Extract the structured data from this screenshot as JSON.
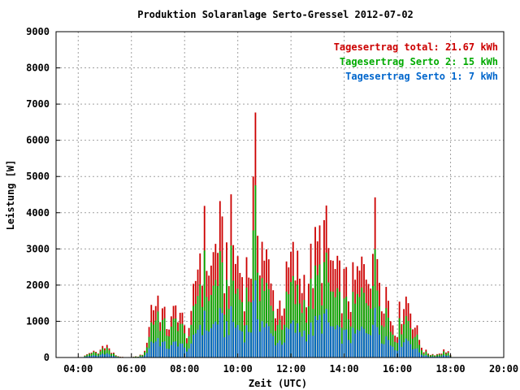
{
  "chart_data": {
    "type": "bar",
    "title": "Produktion Solaranlage Serto-Gressel 2012-07-02",
    "xlabel": "Zeit (UTC)",
    "ylabel": "Leistung [W]",
    "xlim": [
      3.1667,
      20.0
    ],
    "ylim": [
      0,
      9000
    ],
    "yticks": [
      0,
      1000,
      2000,
      3000,
      4000,
      5000,
      6000,
      7000,
      8000,
      9000
    ],
    "xticks": [
      {
        "value": 4,
        "label": "04:00"
      },
      {
        "value": 6,
        "label": "06:00"
      },
      {
        "value": 8,
        "label": "08:00"
      },
      {
        "value": 10,
        "label": "10:00"
      },
      {
        "value": 12,
        "label": "12:00"
      },
      {
        "value": 14,
        "label": "14:00"
      },
      {
        "value": 16,
        "label": "16:00"
      },
      {
        "value": 18,
        "label": "18:00"
      },
      {
        "value": 20,
        "label": "20:00"
      }
    ],
    "grid": true,
    "legend_position": "top-right",
    "legend": [
      {
        "label": "Tagesertrag total: 21.67 kWh",
        "color": "#cc0000"
      },
      {
        "label": "Tagesertrag Serto 2: 15 kWh",
        "color": "#00aa00"
      },
      {
        "label": "Tagesertrag Serto 1: 7 kWh",
        "color": "#0066cc"
      }
    ],
    "bar_interval_hours": 0.0833,
    "time_range": [
      "04:15",
      "18:00"
    ],
    "series": [
      {
        "name": "total",
        "color": "#cc0000",
        "keyframes": [
          [
            4.25,
            50
          ],
          [
            4.5,
            180
          ],
          [
            4.75,
            120
          ],
          [
            5.0,
            450
          ],
          [
            5.25,
            150
          ],
          [
            5.5,
            40
          ],
          [
            5.75,
            0
          ],
          [
            6.25,
            30
          ],
          [
            6.5,
            150
          ],
          [
            6.75,
            1500
          ],
          [
            7.0,
            1750
          ],
          [
            7.25,
            1100
          ],
          [
            7.5,
            1000
          ],
          [
            7.75,
            1600
          ],
          [
            8.0,
            800
          ],
          [
            8.25,
            1000
          ],
          [
            8.5,
            3000
          ],
          [
            8.75,
            3400
          ],
          [
            9.0,
            2500
          ],
          [
            9.25,
            3800
          ],
          [
            9.5,
            2700
          ],
          [
            9.75,
            3500
          ],
          [
            10.0,
            2800
          ],
          [
            10.25,
            2300
          ],
          [
            10.5,
            3000
          ],
          [
            10.65,
            5400
          ],
          [
            10.85,
            3500
          ],
          [
            11.0,
            3200
          ],
          [
            11.25,
            2000
          ],
          [
            11.5,
            1500
          ],
          [
            11.75,
            1800
          ],
          [
            12.0,
            2800
          ],
          [
            12.25,
            2500
          ],
          [
            12.5,
            2300
          ],
          [
            12.75,
            2600
          ],
          [
            13.0,
            3100
          ],
          [
            13.25,
            3600
          ],
          [
            13.5,
            2800
          ],
          [
            13.75,
            2200
          ],
          [
            14.0,
            2100
          ],
          [
            14.25,
            1900
          ],
          [
            14.5,
            2300
          ],
          [
            14.75,
            2600
          ],
          [
            15.0,
            3100
          ],
          [
            15.15,
            3700
          ],
          [
            15.4,
            2300
          ],
          [
            15.6,
            2000
          ],
          [
            15.75,
            1200
          ],
          [
            16.0,
            900
          ],
          [
            16.25,
            1900
          ],
          [
            16.5,
            1500
          ],
          [
            16.75,
            700
          ],
          [
            17.0,
            200
          ],
          [
            17.25,
            100
          ],
          [
            17.5,
            100
          ],
          [
            17.75,
            200
          ],
          [
            17.9,
            200
          ],
          [
            18.0,
            50
          ]
        ]
      },
      {
        "name": "Serto 2",
        "color": "#00aa00",
        "keyframes": [
          [
            4.25,
            40
          ],
          [
            4.5,
            150
          ],
          [
            4.75,
            100
          ],
          [
            5.0,
            350
          ],
          [
            5.25,
            120
          ],
          [
            5.5,
            30
          ],
          [
            5.75,
            0
          ],
          [
            6.25,
            25
          ],
          [
            6.5,
            120
          ],
          [
            6.75,
            1000
          ],
          [
            7.0,
            1300
          ],
          [
            7.25,
            850
          ],
          [
            7.5,
            750
          ],
          [
            7.75,
            1200
          ],
          [
            8.0,
            600
          ],
          [
            8.25,
            700
          ],
          [
            8.5,
            2100
          ],
          [
            8.75,
            2400
          ],
          [
            9.0,
            1700
          ],
          [
            9.25,
            2600
          ],
          [
            9.5,
            1800
          ],
          [
            9.75,
            2400
          ],
          [
            10.0,
            1900
          ],
          [
            10.25,
            1600
          ],
          [
            10.5,
            2100
          ],
          [
            10.65,
            3800
          ],
          [
            10.85,
            2400
          ],
          [
            11.0,
            2200
          ],
          [
            11.25,
            1400
          ],
          [
            11.5,
            1000
          ],
          [
            11.75,
            1200
          ],
          [
            12.0,
            2000
          ],
          [
            12.25,
            1700
          ],
          [
            12.5,
            1600
          ],
          [
            12.75,
            1800
          ],
          [
            13.0,
            2200
          ],
          [
            13.25,
            2500
          ],
          [
            13.5,
            1900
          ],
          [
            13.75,
            1500
          ],
          [
            14.0,
            1400
          ],
          [
            14.25,
            1300
          ],
          [
            14.5,
            1600
          ],
          [
            14.75,
            1800
          ],
          [
            15.0,
            2200
          ],
          [
            15.15,
            2500
          ],
          [
            15.4,
            1600
          ],
          [
            15.6,
            1400
          ],
          [
            15.75,
            850
          ],
          [
            16.0,
            650
          ],
          [
            16.25,
            1300
          ],
          [
            16.5,
            1000
          ],
          [
            16.75,
            500
          ],
          [
            17.0,
            150
          ],
          [
            17.25,
            80
          ],
          [
            17.5,
            80
          ],
          [
            17.75,
            150
          ],
          [
            17.9,
            150
          ],
          [
            18.0,
            40
          ]
        ]
      },
      {
        "name": "Serto 1",
        "color": "#0066cc",
        "keyframes": [
          [
            4.25,
            20
          ],
          [
            4.5,
            60
          ],
          [
            4.75,
            40
          ],
          [
            5.0,
            150
          ],
          [
            5.25,
            50
          ],
          [
            5.5,
            15
          ],
          [
            5.75,
            0
          ],
          [
            6.25,
            10
          ],
          [
            6.5,
            50
          ],
          [
            6.75,
            450
          ],
          [
            7.0,
            550
          ],
          [
            7.25,
            350
          ],
          [
            7.5,
            300
          ],
          [
            7.75,
            500
          ],
          [
            8.0,
            250
          ],
          [
            8.25,
            300
          ],
          [
            8.5,
            950
          ],
          [
            8.75,
            1050
          ],
          [
            9.0,
            800
          ],
          [
            9.25,
            1200
          ],
          [
            9.5,
            850
          ],
          [
            9.75,
            1100
          ],
          [
            10.0,
            900
          ],
          [
            10.25,
            750
          ],
          [
            10.5,
            950
          ],
          [
            10.65,
            1700
          ],
          [
            10.85,
            1100
          ],
          [
            11.0,
            1000
          ],
          [
            11.25,
            650
          ],
          [
            11.5,
            450
          ],
          [
            11.75,
            550
          ],
          [
            12.0,
            900
          ],
          [
            12.25,
            800
          ],
          [
            12.5,
            750
          ],
          [
            12.75,
            800
          ],
          [
            13.0,
            1000
          ],
          [
            13.25,
            1150
          ],
          [
            13.5,
            900
          ],
          [
            13.75,
            700
          ],
          [
            14.0,
            650
          ],
          [
            14.25,
            600
          ],
          [
            14.5,
            700
          ],
          [
            14.75,
            800
          ],
          [
            15.0,
            1000
          ],
          [
            15.15,
            1150
          ],
          [
            15.4,
            700
          ],
          [
            15.6,
            600
          ],
          [
            15.75,
            400
          ],
          [
            16.0,
            300
          ],
          [
            16.25,
            600
          ],
          [
            16.5,
            450
          ],
          [
            16.75,
            200
          ],
          [
            17.0,
            60
          ],
          [
            17.25,
            30
          ],
          [
            17.5,
            30
          ],
          [
            17.75,
            60
          ],
          [
            17.9,
            60
          ],
          [
            18.0,
            15
          ]
        ]
      }
    ]
  },
  "colors": {
    "background": "#ffffff",
    "axis": "#000000",
    "grid": "#a0a0a0",
    "total": "#cc0000",
    "serto2": "#00aa00",
    "serto1": "#0066cc"
  }
}
